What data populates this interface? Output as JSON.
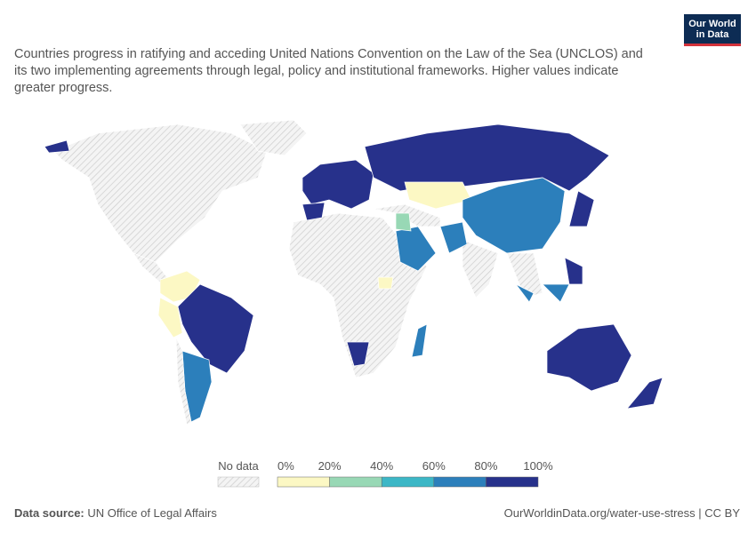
{
  "subtitle": "Countries progress in ratifying and acceding United Nations Convention on the Law of the Sea (UNCLOS) and its two implementing agreements through legal, policy and institutional frameworks. Higher values indicate greater progress.",
  "logo": {
    "line1": "Our World",
    "line2": "in Data"
  },
  "legend": {
    "no_data": "No data",
    "ticks": [
      "0%",
      "20%",
      "40%",
      "60%",
      "80%",
      "100%"
    ],
    "colors": [
      "#fcf8c4",
      "#98d8b5",
      "#3cb7c6",
      "#2c7fbb",
      "#27318b"
    ]
  },
  "footer": {
    "source_label": "Data source:",
    "source": "UN Office of Legal Affairs",
    "url": "OurWorldinData.org/water-use-stress | CC BY"
  }
}
